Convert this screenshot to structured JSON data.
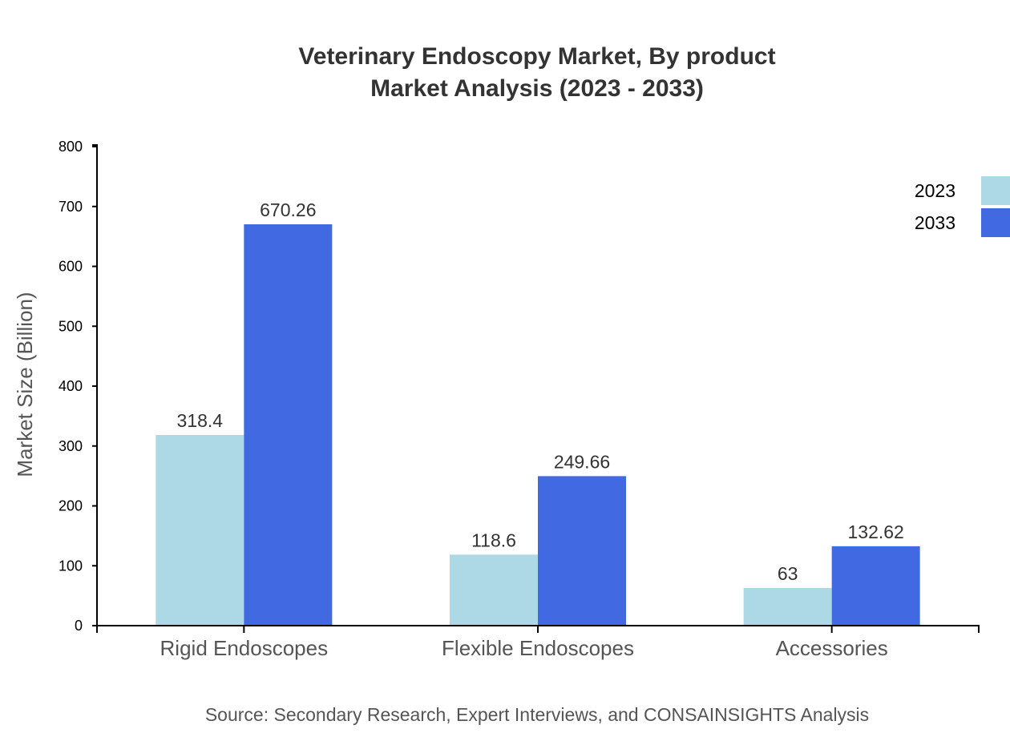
{
  "chart_data": {
    "type": "bar",
    "title": "Veterinary Endoscopy Market, By product",
    "subtitle": "Market Analysis (2023 - 2033)",
    "ylabel": "Market Size (Billion)",
    "xlabel": "",
    "ylim": [
      0,
      800
    ],
    "yticks": [
      0,
      100,
      200,
      300,
      400,
      500,
      600,
      700,
      800
    ],
    "categories": [
      "Rigid Endoscopes",
      "Flexible Endoscopes",
      "Accessories"
    ],
    "series": [
      {
        "name": "2023",
        "color": "#add8e6",
        "values": [
          318.4,
          118.6,
          63
        ]
      },
      {
        "name": "2033",
        "color": "#4169e1",
        "values": [
          670.26,
          249.66,
          132.62
        ]
      }
    ],
    "data_labels": [
      [
        "318.4",
        "118.6",
        "63"
      ],
      [
        "670.26",
        "249.66",
        "132.62"
      ]
    ],
    "grid": false,
    "legend_position": "top-right",
    "source": "Source: Secondary Research, Expert Interviews, and CONSAINSIGHTS Analysis"
  }
}
